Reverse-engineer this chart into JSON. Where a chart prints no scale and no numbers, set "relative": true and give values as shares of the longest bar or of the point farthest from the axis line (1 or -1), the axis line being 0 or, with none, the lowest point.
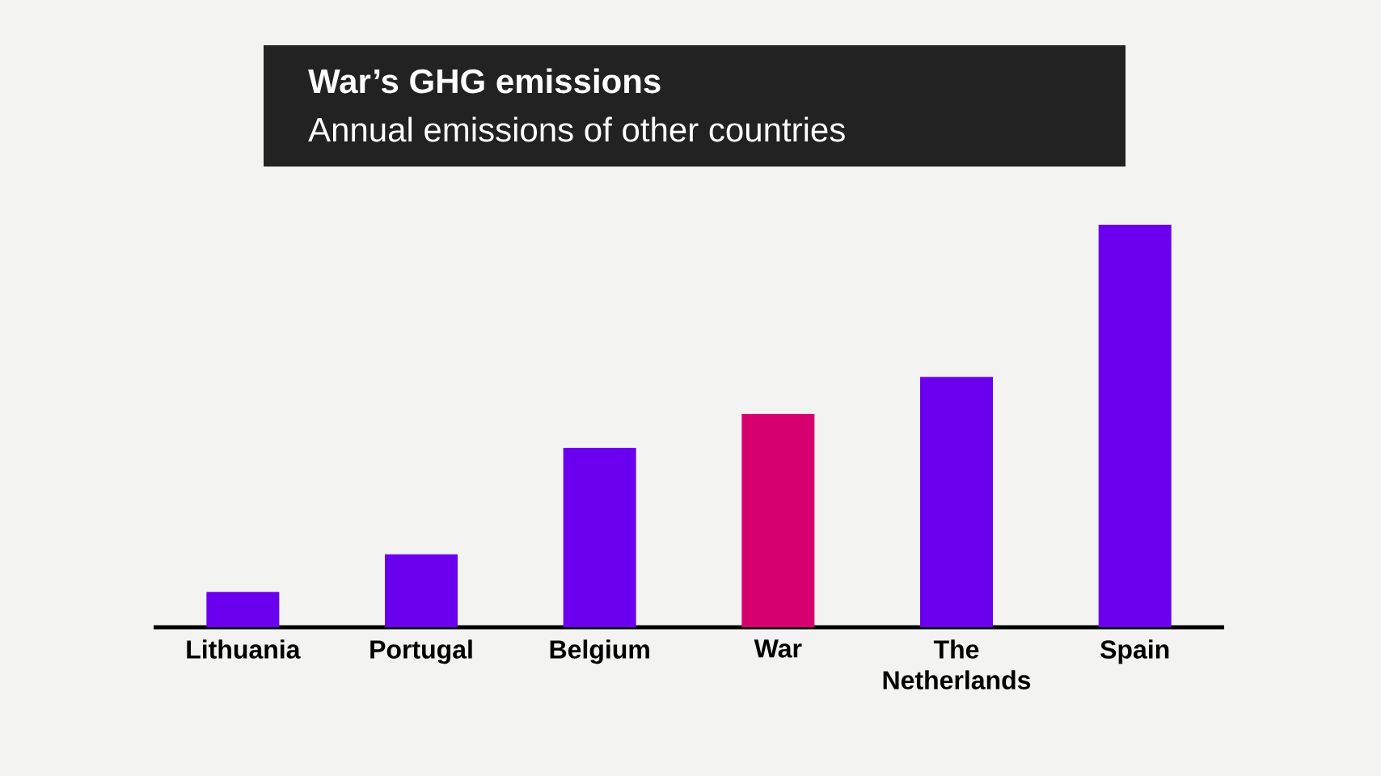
{
  "chart_data": {
    "type": "bar",
    "title": "War’s GHG emissions",
    "subtitle": "Annual emissions of other countries",
    "categories": [
      "Lithuania",
      "Portugal",
      "Belgium",
      "War",
      "The Netherlands",
      "Spain"
    ],
    "values": [
      0.088,
      0.181,
      0.446,
      0.53,
      0.622,
      1
    ],
    "colors": [
      "#6b00ee",
      "#6b00ee",
      "#6b00ee",
      "#d6006f",
      "#6b00ee",
      "#6b00ee"
    ],
    "relative": true
  }
}
